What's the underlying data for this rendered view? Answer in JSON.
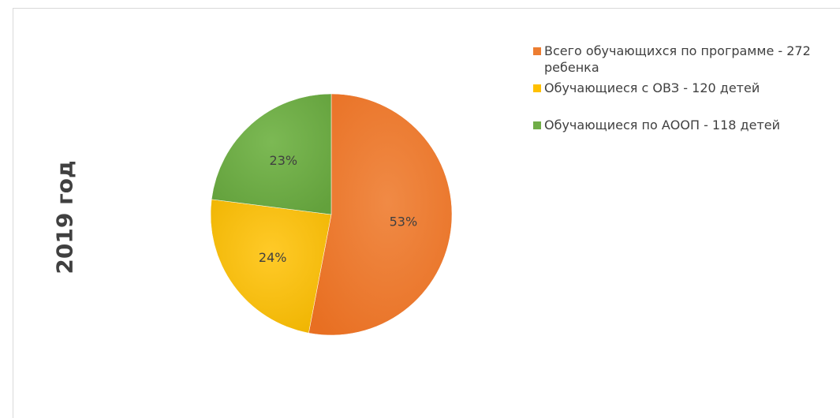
{
  "chart_data": {
    "type": "pie",
    "ylabel": "2019 год",
    "legend_position": "right",
    "slices": [
      {
        "name": "Всего обучающихся по программе - 272 ребенка",
        "value": 53,
        "label": "53%",
        "color": "#ed7d31"
      },
      {
        "name": "Обучающиеся с ОВЗ - 120 детей",
        "value": 24,
        "label": "24%",
        "color": "#ffc000"
      },
      {
        "name": "Обучающиеся по АООП - 118 детей",
        "value": 23,
        "label": "23%",
        "color": "#70ad47"
      }
    ]
  }
}
